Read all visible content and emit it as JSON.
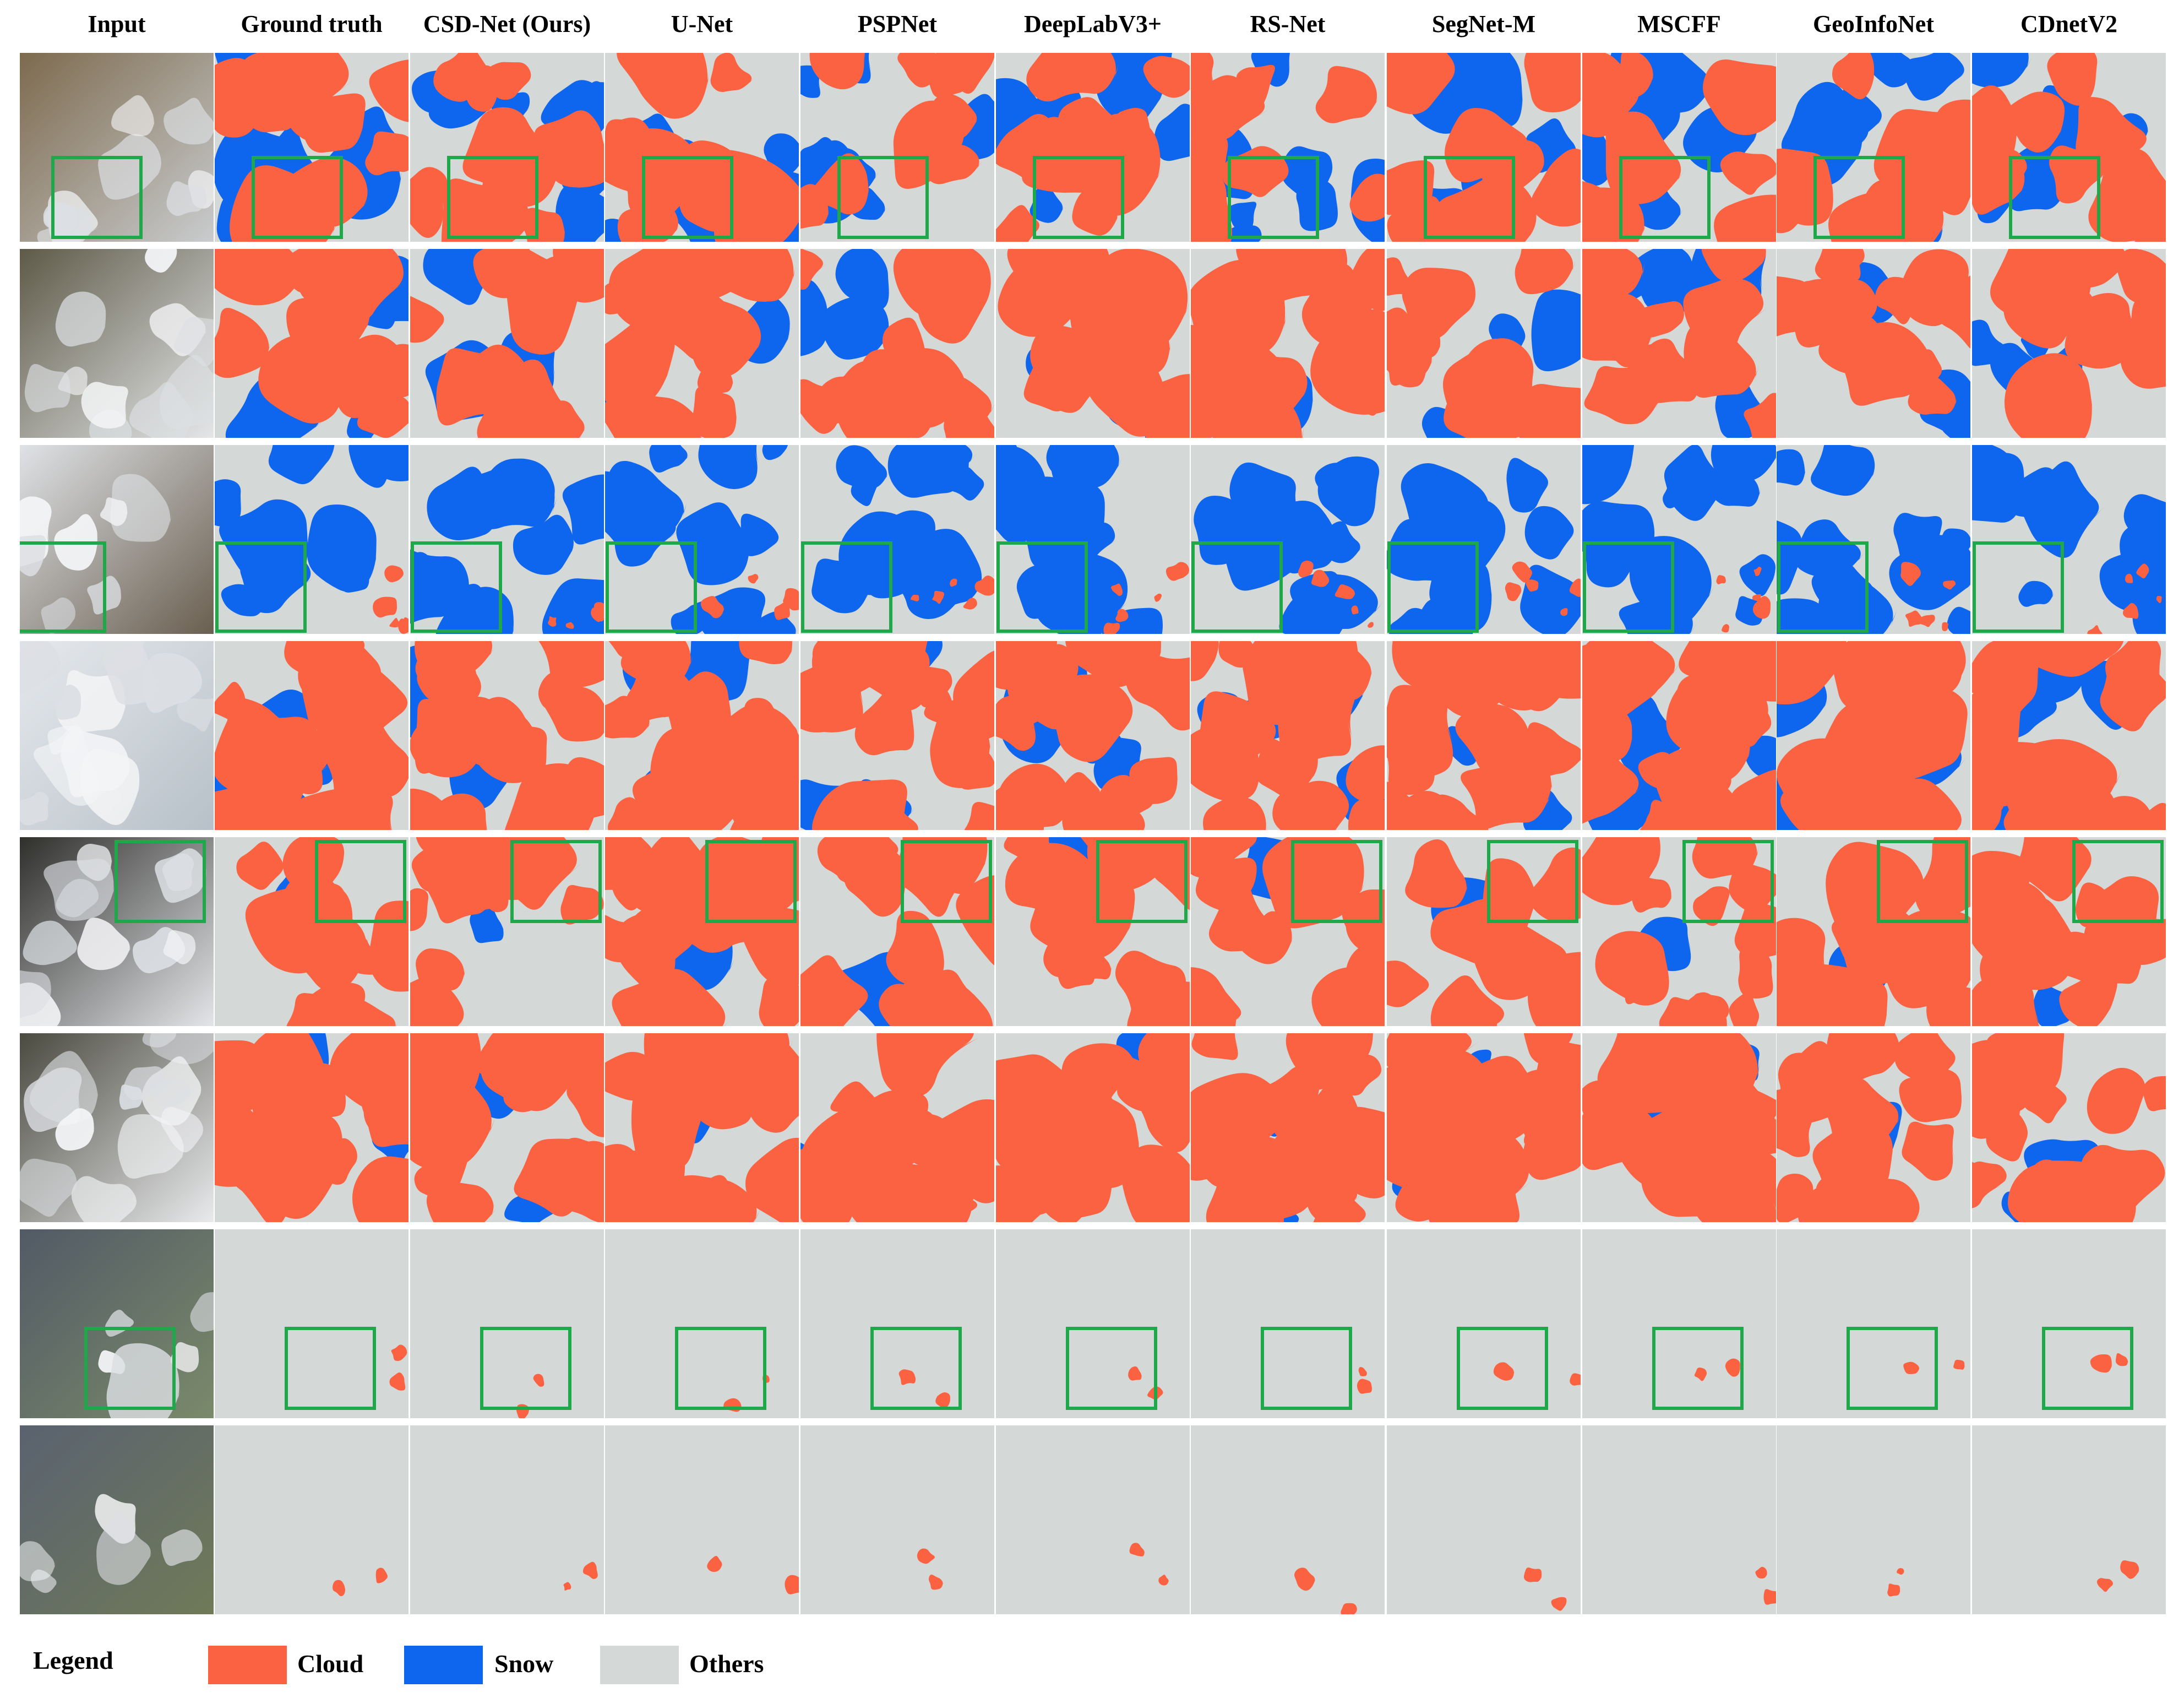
{
  "columns": [
    "Input",
    "Ground truth",
    "CSD-Net (Ours)",
    "U-Net",
    "PSPNet",
    "DeepLabV3+",
    "RS-Net",
    "SegNet-M",
    "MSCFF",
    "GeoInfoNet",
    "CDnetV2"
  ],
  "colors": {
    "cloud": "#fa6241",
    "snow": "#0f66ee",
    "others": "#d4d8d6",
    "box": "#1fa84a"
  },
  "legend": {
    "title": "Legend",
    "items": [
      {
        "label": "Cloud",
        "color": "#fa6241"
      },
      {
        "label": "Snow",
        "color": "#0f66ee"
      },
      {
        "label": "Others",
        "color": "#d4d8d6"
      }
    ]
  },
  "rows": [
    {
      "scene": "mountain-snow-cloud",
      "inputs": [
        "#7d6a4e",
        "#c9ccce"
      ],
      "mask": {
        "cloud": 0.35,
        "snow": 0.35
      },
      "highlight": true
    },
    {
      "scene": "mountain-peak",
      "inputs": [
        "#5e5a48",
        "#e4e6e8"
      ],
      "mask": {
        "cloud": 0.45,
        "snow": 0.2
      },
      "highlight": false
    },
    {
      "scene": "glacier-cloud",
      "inputs": [
        "#dfe2e6",
        "#6a5f50"
      ],
      "mask": {
        "cloud": 0.2,
        "snow": 0.5
      },
      "highlight": true
    },
    {
      "scene": "thick-cloud",
      "inputs": [
        "#e6e9ed",
        "#b7c0c8"
      ],
      "mask": {
        "cloud": 0.65,
        "snow": 0.2
      },
      "highlight": false
    },
    {
      "scene": "scattered-cloud-dark",
      "inputs": [
        "#2f2f2c",
        "#e3e5e8"
      ],
      "mask": {
        "cloud": 0.5,
        "snow": 0.05
      },
      "highlight": true
    },
    {
      "scene": "cloud-over-terrain",
      "inputs": [
        "#4b4a40",
        "#e8eaec"
      ],
      "mask": {
        "cloud": 0.65,
        "snow": 0.08
      },
      "highlight": false
    },
    {
      "scene": "coastal-reef",
      "inputs": [
        "#525a66",
        "#7a8a6a"
      ],
      "mask": {
        "cloud": 0.04,
        "snow": 0.0
      },
      "highlight": true
    },
    {
      "scene": "coastal-town",
      "inputs": [
        "#5a6270",
        "#6f7a58"
      ],
      "mask": {
        "cloud": 0.04,
        "snow": 0.0
      },
      "highlight": false
    }
  ]
}
